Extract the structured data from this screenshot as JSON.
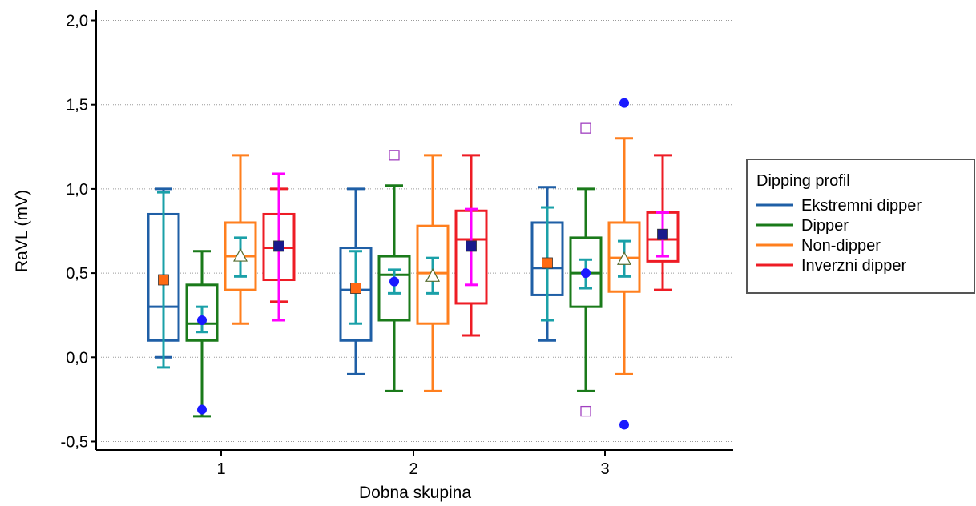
{
  "chart_data": {
    "type": "box",
    "xlabel": "Dobna skupina",
    "ylabel": "RaVL (mV)",
    "ylim": [
      -0.55,
      2.05
    ],
    "y_ticks": [
      {
        "value": -0.5,
        "label": "-0,5"
      },
      {
        "value": 0.0,
        "label": "0,0"
      },
      {
        "value": 0.5,
        "label": "0,5"
      },
      {
        "value": 1.0,
        "label": "1,0"
      },
      {
        "value": 1.5,
        "label": "1,5"
      },
      {
        "value": 2.0,
        "label": "2,0"
      }
    ],
    "categories": [
      "1",
      "2",
      "3"
    ],
    "grid": true,
    "legend": {
      "title": "Dipping profil",
      "position": "right"
    },
    "series": [
      {
        "name": "Ekstremni dipper",
        "color": "#1f5fa6",
        "ci_color": "#1aa0a8",
        "mean_marker": "filled-square",
        "mean_color": "#ff6a13",
        "boxes": [
          {
            "category": "1",
            "whisker_low": 0.0,
            "q1": 0.1,
            "median": 0.3,
            "q3": 0.85,
            "whisker_high": 1.0,
            "mean": 0.46,
            "ci_low": -0.06,
            "ci_high": 0.98,
            "outliers": []
          },
          {
            "category": "2",
            "whisker_low": -0.1,
            "q1": 0.1,
            "median": 0.4,
            "q3": 0.65,
            "whisker_high": 1.0,
            "mean": 0.41,
            "ci_low": 0.2,
            "ci_high": 0.63,
            "outliers": []
          },
          {
            "category": "3",
            "whisker_low": 0.1,
            "q1": 0.37,
            "median": 0.53,
            "q3": 0.8,
            "whisker_high": 1.01,
            "mean": 0.56,
            "ci_low": 0.22,
            "ci_high": 0.89,
            "outliers": []
          }
        ]
      },
      {
        "name": "Dipper",
        "color": "#1a7a1a",
        "ci_color": "#1aa0a8",
        "mean_marker": "filled-circle",
        "mean_color": "#1a1aff",
        "boxes": [
          {
            "category": "1",
            "whisker_low": -0.35,
            "q1": 0.1,
            "median": 0.2,
            "q3": 0.43,
            "whisker_high": 0.63,
            "mean": 0.22,
            "ci_low": 0.15,
            "ci_high": 0.3,
            "outliers": [
              {
                "value": -0.31,
                "marker": "filled-circle"
              }
            ]
          },
          {
            "category": "2",
            "whisker_low": -0.2,
            "q1": 0.22,
            "median": 0.49,
            "q3": 0.6,
            "whisker_high": 1.02,
            "mean": 0.45,
            "ci_low": 0.38,
            "ci_high": 0.52,
            "outliers": [
              {
                "value": 1.2,
                "marker": "open-square"
              }
            ]
          },
          {
            "category": "3",
            "whisker_low": -0.2,
            "q1": 0.3,
            "median": 0.5,
            "q3": 0.71,
            "whisker_high": 1.0,
            "mean": 0.5,
            "ci_low": 0.41,
            "ci_high": 0.58,
            "outliers": [
              {
                "value": 1.36,
                "marker": "open-square"
              },
              {
                "value": -0.32,
                "marker": "open-square"
              }
            ]
          }
        ]
      },
      {
        "name": "Non-dipper",
        "color": "#ff7f1e",
        "ci_color": "#1aa0a8",
        "mean_marker": "open-triangle",
        "mean_color": "#ffffff",
        "boxes": [
          {
            "category": "1",
            "whisker_low": 0.2,
            "q1": 0.4,
            "median": 0.6,
            "q3": 0.8,
            "whisker_high": 1.2,
            "mean": 0.6,
            "ci_low": 0.48,
            "ci_high": 0.71,
            "outliers": []
          },
          {
            "category": "2",
            "whisker_low": -0.2,
            "q1": 0.2,
            "median": 0.5,
            "q3": 0.78,
            "whisker_high": 1.2,
            "mean": 0.48,
            "ci_low": 0.38,
            "ci_high": 0.59,
            "outliers": []
          },
          {
            "category": "3",
            "whisker_low": -0.1,
            "q1": 0.39,
            "median": 0.59,
            "q3": 0.8,
            "whisker_high": 1.3,
            "mean": 0.58,
            "ci_low": 0.48,
            "ci_high": 0.69,
            "outliers": [
              {
                "value": 1.51,
                "marker": "filled-circle"
              },
              {
                "value": -0.4,
                "marker": "filled-circle"
              }
            ]
          }
        ]
      },
      {
        "name": "Inverzni dipper",
        "color": "#ee1c25",
        "ci_color": "#ff00ff",
        "mean_marker": "filled-square",
        "mean_color": "#1a1a8c",
        "boxes": [
          {
            "category": "1",
            "whisker_low": 0.33,
            "q1": 0.46,
            "median": 0.65,
            "q3": 0.85,
            "whisker_high": 1.0,
            "mean": 0.66,
            "ci_low": 0.22,
            "ci_high": 1.09,
            "outliers": []
          },
          {
            "category": "2",
            "whisker_low": 0.13,
            "q1": 0.32,
            "median": 0.7,
            "q3": 0.87,
            "whisker_high": 1.2,
            "mean": 0.66,
            "ci_low": 0.43,
            "ci_high": 0.88,
            "outliers": []
          },
          {
            "category": "3",
            "whisker_low": 0.4,
            "q1": 0.57,
            "median": 0.7,
            "q3": 0.86,
            "whisker_high": 1.2,
            "mean": 0.73,
            "ci_low": 0.6,
            "ci_high": 0.86,
            "outliers": []
          }
        ]
      }
    ]
  }
}
